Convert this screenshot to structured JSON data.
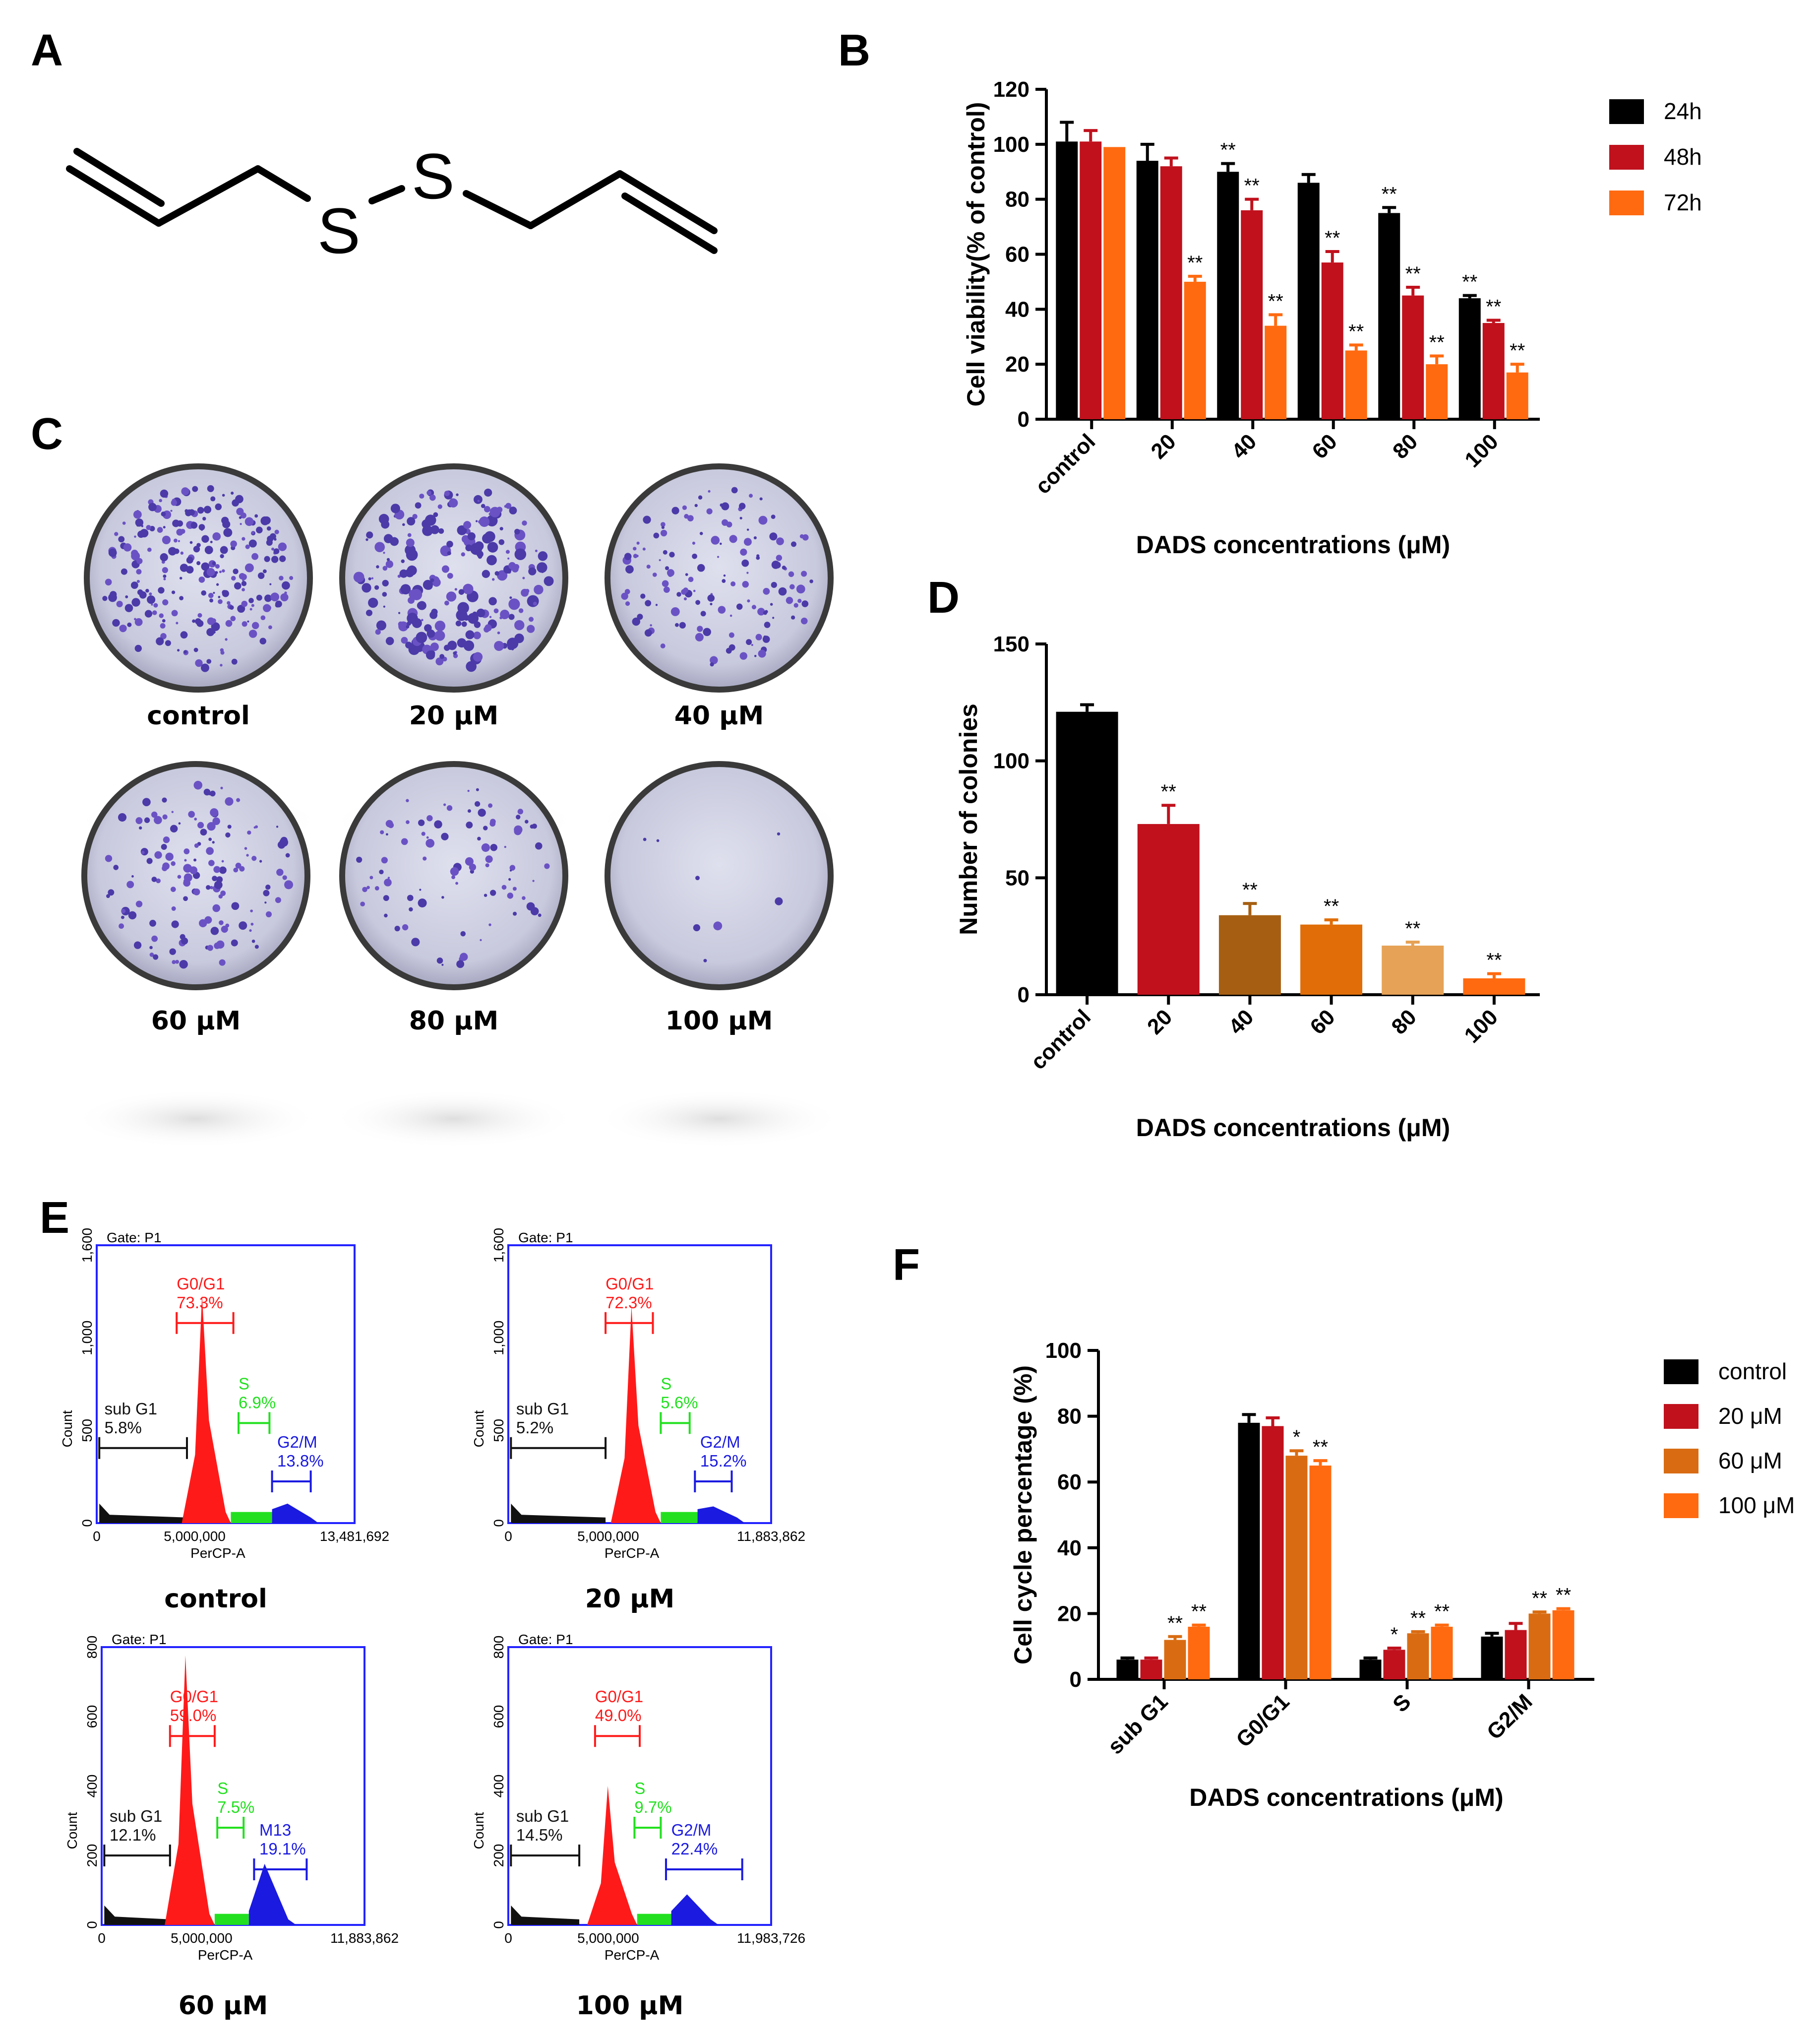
{
  "panels": {
    "A": "A",
    "B": "B",
    "C": "C",
    "D": "D",
    "E": "E",
    "F": "F"
  },
  "structure": {
    "atom1": "S",
    "atom2": "S"
  },
  "colony_captions": [
    "control",
    "20 μM",
    "40 μM",
    "60 μM",
    "80 μM",
    "100 μM"
  ],
  "flow_captions": [
    "control",
    "20 μM",
    "60 μM",
    "100 μM"
  ],
  "colors": {
    "black": "#000000",
    "red": "#c0111d",
    "orange": "#ff6a10",
    "brown": "#a65f12",
    "dark_orange": "#e06d08",
    "light_orange": "#e6a256",
    "mid_orange": "#d96c12",
    "flow_red": "#ff1a1a",
    "flow_green": "#22e01f",
    "flow_blue": "#1a1ae0",
    "frame_blue": "#2323ff"
  },
  "chart_data": [
    {
      "id": "B",
      "type": "bar",
      "categories": [
        "control",
        "20",
        "40",
        "60",
        "80",
        "100"
      ],
      "series": [
        {
          "name": "24h",
          "values": [
            101,
            94,
            90,
            86,
            75,
            44
          ],
          "errors": [
            7,
            6,
            3,
            3,
            2,
            1
          ],
          "sig": [
            "",
            "",
            "**",
            "",
            "**",
            "**"
          ]
        },
        {
          "name": "48h",
          "values": [
            101,
            92,
            76,
            57,
            45,
            35
          ],
          "errors": [
            4,
            3,
            4,
            4,
            3,
            1
          ],
          "sig": [
            "",
            "",
            "**",
            "**",
            "**",
            "**"
          ]
        },
        {
          "name": "72h",
          "values": [
            99,
            50,
            34,
            25,
            20,
            17
          ],
          "errors": [
            0,
            2,
            4,
            2,
            3,
            3
          ],
          "sig": [
            "",
            "**",
            "**",
            "**",
            "**",
            "**"
          ]
        }
      ],
      "xlabel": "DADS concentrations (μM)",
      "ylabel": "Cell viability(% of control)",
      "ylim": [
        0,
        120
      ],
      "yticks": [
        0,
        20,
        40,
        60,
        80,
        100,
        120
      ],
      "legend_position": "top-right"
    },
    {
      "id": "D",
      "type": "bar",
      "categories": [
        "control",
        "20",
        "40",
        "60",
        "80",
        "100"
      ],
      "values": [
        121,
        73,
        34,
        30,
        21,
        7
      ],
      "errors": [
        3,
        8,
        5,
        2,
        1.5,
        2
      ],
      "sig": [
        "",
        "**",
        "**",
        "**",
        "**",
        "**"
      ],
      "xlabel": "DADS concentrations (μM)",
      "ylabel": "Number of colonies",
      "ylim": [
        0,
        150
      ],
      "yticks": [
        0,
        50,
        100,
        150
      ]
    },
    {
      "id": "F",
      "type": "bar",
      "categories": [
        "sub G1",
        "G0/G1",
        "S",
        "G2/M"
      ],
      "series": [
        {
          "name": "control",
          "values": [
            6,
            78,
            6,
            13
          ],
          "errors": [
            0.5,
            2.5,
            0.5,
            1
          ],
          "sig": [
            "",
            "",
            "",
            ""
          ]
        },
        {
          "name": "20 μM",
          "values": [
            6,
            77,
            9,
            15
          ],
          "errors": [
            0.5,
            2.5,
            0.5,
            2
          ],
          "sig": [
            "",
            "",
            "*",
            ""
          ]
        },
        {
          "name": "60 μM",
          "values": [
            12,
            68,
            14,
            20
          ],
          "errors": [
            1,
            1.5,
            0.5,
            0.5
          ],
          "sig": [
            "**",
            "*",
            "**",
            "**"
          ]
        },
        {
          "name": "100 μM",
          "values": [
            16,
            65,
            16,
            21
          ],
          "errors": [
            0.5,
            1.5,
            0.5,
            0.5
          ],
          "sig": [
            "**",
            "**",
            "**",
            "**"
          ]
        }
      ],
      "xlabel": "DADS concentrations (μM)",
      "ylabel": "Cell cycle percentage (%)",
      "ylim": [
        0,
        100
      ],
      "yticks": [
        0,
        20,
        40,
        60,
        80,
        100
      ],
      "legend_position": "right"
    },
    {
      "id": "E",
      "type": "area",
      "plots": [
        {
          "caption": "control",
          "gate": "Gate: P1",
          "ymax": 1600,
          "yticks": [
            "0",
            "500",
            "1,000",
            "1,600"
          ],
          "xmax_label": "13,481,692",
          "subg1": "sub G1",
          "subg1_pct": "5.8%",
          "g0g1": "G0/G1",
          "g0g1_pct": "73.3%",
          "s": "S",
          "s_pct": "6.9%",
          "g2m": "G2/M",
          "g2m_pct": "13.8%"
        },
        {
          "caption": "20 μM",
          "gate": "Gate: P1",
          "ymax": 1600,
          "yticks": [
            "0",
            "500",
            "1,000",
            "1,600"
          ],
          "xmax_label": "11,883,862",
          "subg1": "sub G1",
          "subg1_pct": "5.2%",
          "g0g1": "G0/G1",
          "g0g1_pct": "72.3%",
          "s": "S",
          "s_pct": "5.6%",
          "g2m": "G2/M",
          "g2m_pct": "15.2%"
        },
        {
          "caption": "60 μM",
          "gate": "Gate: P1",
          "ymax": 800,
          "yticks": [
            "0",
            "200",
            "400",
            "600",
            "800"
          ],
          "xmax_label": "11,883,862",
          "subg1": "sub G1",
          "subg1_pct": "12.1%",
          "g0g1": "G0/G1",
          "g0g1_pct": "59.0%",
          "s": "S",
          "s_pct": "7.5%",
          "g2m": "M13",
          "g2m_pct": "19.1%"
        },
        {
          "caption": "100 μM",
          "gate": "Gate: P1",
          "ymax": 800,
          "yticks": [
            "0",
            "200",
            "400",
            "600",
            "800"
          ],
          "xmax_label": "11,983,726",
          "subg1": "sub G1",
          "subg1_pct": "14.5%",
          "g0g1": "G0/G1",
          "g0g1_pct": "49.0%",
          "s": "S",
          "s_pct": "9.7%",
          "g2m": "G2/M",
          "g2m_pct": "22.4%"
        }
      ],
      "x_mid_label": "5,000,000",
      "xlabel": "PerCP-A",
      "ylabel": "Count",
      "x_origin": "0"
    }
  ]
}
